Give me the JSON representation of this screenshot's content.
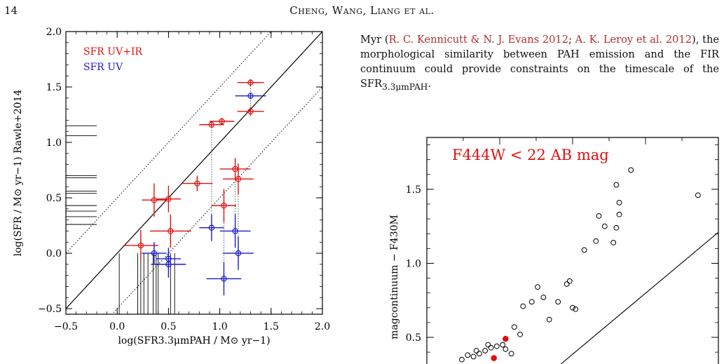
{
  "header": {
    "page_number": "14",
    "running_head": "Cheng, Wang, Liang et al."
  },
  "body_text": {
    "before_cite1": "Myr (",
    "cite1": "R. C. Kennicutt & N. J. Evans 2012",
    "between_cites": "; ",
    "cite2": "A. K. Leroy et al. 2012",
    "after_cite2": "), the morphological similarity between PAH emission and the FIR continuum could provide constraints on the timescale of the SFR",
    "sub": "3.3μmPAH",
    "end": "."
  },
  "chart_data": [
    {
      "type": "scatter",
      "title": "",
      "xlabel": "log(SFR3.3μmPAH / M⊙ yr−1)",
      "ylabel": "log(SFR / M⊙ yr−1) Rawle+2014",
      "xlim": [
        -0.5,
        2.0
      ],
      "ylim": [
        -0.55,
        2.0
      ],
      "xticks": [
        -0.5,
        0.0,
        0.5,
        1.0,
        1.5,
        2.0
      ],
      "xtick_labels": [
        "−0.5",
        "0.0",
        "0.5",
        "1.0",
        "1.5",
        "2.0"
      ],
      "yticks": [
        -0.5,
        0.0,
        0.5,
        1.0,
        1.5,
        2.0
      ],
      "ytick_labels": [
        "−0.5",
        "0.0",
        "0.5",
        "1.0",
        "1.5",
        "2.0"
      ],
      "legend_placement": "top-left",
      "colors": {
        "uv_ir": "#e01010",
        "uv": "#1a1ad0",
        "lines": "#000000"
      },
      "lines": [
        {
          "name": "1:1",
          "style": "solid",
          "offset": 0
        },
        {
          "name": "+0.5 dex",
          "style": "dotted",
          "offset": 0.5
        },
        {
          "name": "-0.5 dex",
          "style": "dotted",
          "offset": -0.5
        }
      ],
      "series": [
        {
          "name": "SFR UV+IR",
          "color": "#e01010",
          "points": [
            {
              "x": 1.3,
              "y": 1.54,
              "xerr": 0.13,
              "yerr": 0.03
            },
            {
              "x": 1.3,
              "y": 1.28,
              "xerr": 0.13,
              "yerr": 0.04
            },
            {
              "x": 0.92,
              "y": 1.16,
              "xerr": 0.12,
              "yerr": 0.03
            },
            {
              "x": 1.02,
              "y": 1.19,
              "xerr": 0.12,
              "yerr": 0.03
            },
            {
              "x": 1.15,
              "y": 0.76,
              "xerr": 0.15,
              "yerr": 0.1
            },
            {
              "x": 1.18,
              "y": 0.67,
              "xerr": 0.15,
              "yerr": 0.14
            },
            {
              "x": 0.78,
              "y": 0.63,
              "xerr": 0.15,
              "yerr": 0.07
            },
            {
              "x": 1.04,
              "y": 0.43,
              "xerr": 0.12,
              "yerr": 0.15
            },
            {
              "x": 0.36,
              "y": 0.48,
              "xerr": 0.12,
              "yerr": 0.15
            },
            {
              "x": 0.5,
              "y": 0.49,
              "xerr": 0.12,
              "yerr": 0.12
            },
            {
              "x": 0.52,
              "y": 0.2,
              "xerr": 0.2,
              "yerr": 0.15
            },
            {
              "x": 0.23,
              "y": 0.07,
              "xerr": 0.17,
              "yerr": 0.14
            }
          ]
        },
        {
          "name": "SFR UV",
          "color": "#1a1ad0",
          "points": [
            {
              "x": 1.3,
              "y": 1.42,
              "xerr": 0.15,
              "yerr": 0.03
            },
            {
              "x": 0.92,
              "y": 0.23,
              "xerr": 0.12,
              "yerr": 0.12
            },
            {
              "x": 1.15,
              "y": 0.2,
              "xerr": 0.15,
              "yerr": 0.15
            },
            {
              "x": 1.18,
              "y": 0.0,
              "xerr": 0.15,
              "yerr": 0.15
            },
            {
              "x": 1.04,
              "y": -0.23,
              "xerr": 0.17,
              "yerr": 0.15
            },
            {
              "x": 0.36,
              "y": 0.0,
              "xerr": 0.12,
              "yerr": 0.1
            },
            {
              "x": 0.5,
              "y": -0.05,
              "xerr": 0.12,
              "yerr": 0.1
            },
            {
              "x": 0.5,
              "y": -0.1,
              "xerr": 0.17,
              "yerr": 0.12
            }
          ]
        }
      ],
      "connectors": [
        {
          "x": 0.92,
          "y1": 1.16,
          "y2": 0.23
        },
        {
          "x": 1.04,
          "y1": 0.43,
          "y2": -0.23
        },
        {
          "x": 1.15,
          "y1": 0.76,
          "y2": 0.2
        },
        {
          "x": 1.18,
          "y1": 0.67,
          "y2": 0.0
        },
        {
          "x": 1.3,
          "y1": 1.28,
          "y2": 1.54
        }
      ],
      "y_marginal_ticks": [
        1.15,
        1.06,
        0.7,
        0.68,
        0.56,
        0.54,
        0.43,
        0.38,
        0.33,
        0.26
      ],
      "x_marginal_ticks": [
        0.02,
        0.2,
        0.23,
        0.26,
        0.3,
        0.35,
        0.38,
        0.4,
        0.52,
        0.56
      ]
    },
    {
      "type": "scatter",
      "title": "",
      "annotation": "F444W < 22 AB mag",
      "ylabel": "magcontinuum − F430M",
      "ylim": [
        0.32,
        1.85
      ],
      "xlim": [
        0,
        1
      ],
      "yticks": [
        0.5,
        1.0,
        1.5
      ],
      "ytick_labels": [
        "0.5",
        "1.0",
        "1.5"
      ],
      "colors": {
        "open": "#000000",
        "highlight": "#e01010",
        "annotation": "#e01010"
      },
      "line": {
        "x1": 0.46,
        "y1": 0.32,
        "x2": 1.0,
        "y2": 1.21
      },
      "points_open": [
        [
          0.12,
          0.35
        ],
        [
          0.14,
          0.38
        ],
        [
          0.16,
          0.37
        ],
        [
          0.18,
          0.39
        ],
        [
          0.2,
          0.41
        ],
        [
          0.22,
          0.43
        ],
        [
          0.17,
          0.41
        ],
        [
          0.21,
          0.45
        ],
        [
          0.24,
          0.44
        ],
        [
          0.26,
          0.45
        ],
        [
          0.27,
          0.42
        ],
        [
          0.29,
          0.39
        ],
        [
          0.32,
          0.52
        ],
        [
          0.3,
          0.57
        ],
        [
          0.33,
          0.71
        ],
        [
          0.36,
          0.74
        ],
        [
          0.38,
          0.84
        ],
        [
          0.4,
          0.77
        ],
        [
          0.42,
          0.62
        ],
        [
          0.45,
          0.74
        ],
        [
          0.48,
          0.86
        ],
        [
          0.49,
          0.88
        ],
        [
          0.5,
          0.7
        ],
        [
          0.51,
          0.69
        ],
        [
          0.54,
          1.09
        ],
        [
          0.58,
          1.15
        ],
        [
          0.59,
          1.32
        ],
        [
          0.61,
          1.25
        ],
        [
          0.64,
          1.14
        ],
        [
          0.65,
          1.24
        ],
        [
          0.66,
          1.33
        ],
        [
          0.66,
          1.41
        ],
        [
          0.65,
          1.53
        ],
        [
          0.7,
          1.63
        ],
        [
          0.93,
          1.46
        ]
      ],
      "points_highlight": [
        [
          0.23,
          0.36
        ],
        [
          0.27,
          0.49
        ]
      ]
    }
  ]
}
